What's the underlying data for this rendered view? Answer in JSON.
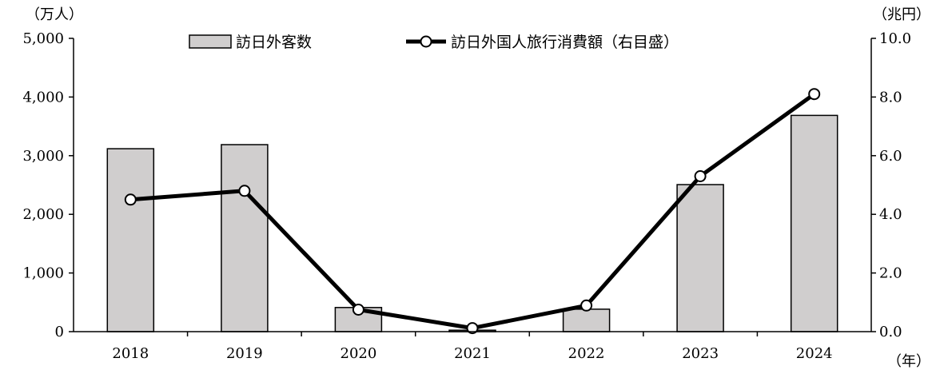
{
  "chart_data": {
    "type": "bar",
    "categories": [
      "2018",
      "2019",
      "2020",
      "2021",
      "2022",
      "2023",
      "2024"
    ],
    "left_axis": {
      "unit_label": "（万人）",
      "ylim": [
        0,
        5000
      ],
      "ticks": [
        0,
        1000,
        2000,
        3000,
        4000,
        5000
      ],
      "tick_labels": [
        "0",
        "1,000",
        "2,000",
        "3,000",
        "4,000",
        "5,000"
      ]
    },
    "right_axis": {
      "unit_label": "（兆円）",
      "ylim": [
        0,
        10
      ],
      "ticks": [
        0,
        2,
        4,
        6,
        8,
        10
      ],
      "tick_labels": [
        "0.0",
        "2.0",
        "4.0",
        "6.0",
        "8.0",
        "10.0"
      ]
    },
    "x_unit_label": "（年）",
    "series": [
      {
        "name": "訪日外客数",
        "type": "bar",
        "axis": "left",
        "color": "#d0cece",
        "values": [
          3119,
          3188,
          412,
          25,
          383,
          2507,
          3687
        ]
      },
      {
        "name": "訪日外国人旅行消費額（右目盛）",
        "type": "line",
        "axis": "right",
        "color": "#000000",
        "values": [
          4.5,
          4.8,
          0.75,
          0.12,
          0.89,
          5.3,
          8.1
        ]
      }
    ],
    "legend_position": "top-center",
    "grid": false
  }
}
